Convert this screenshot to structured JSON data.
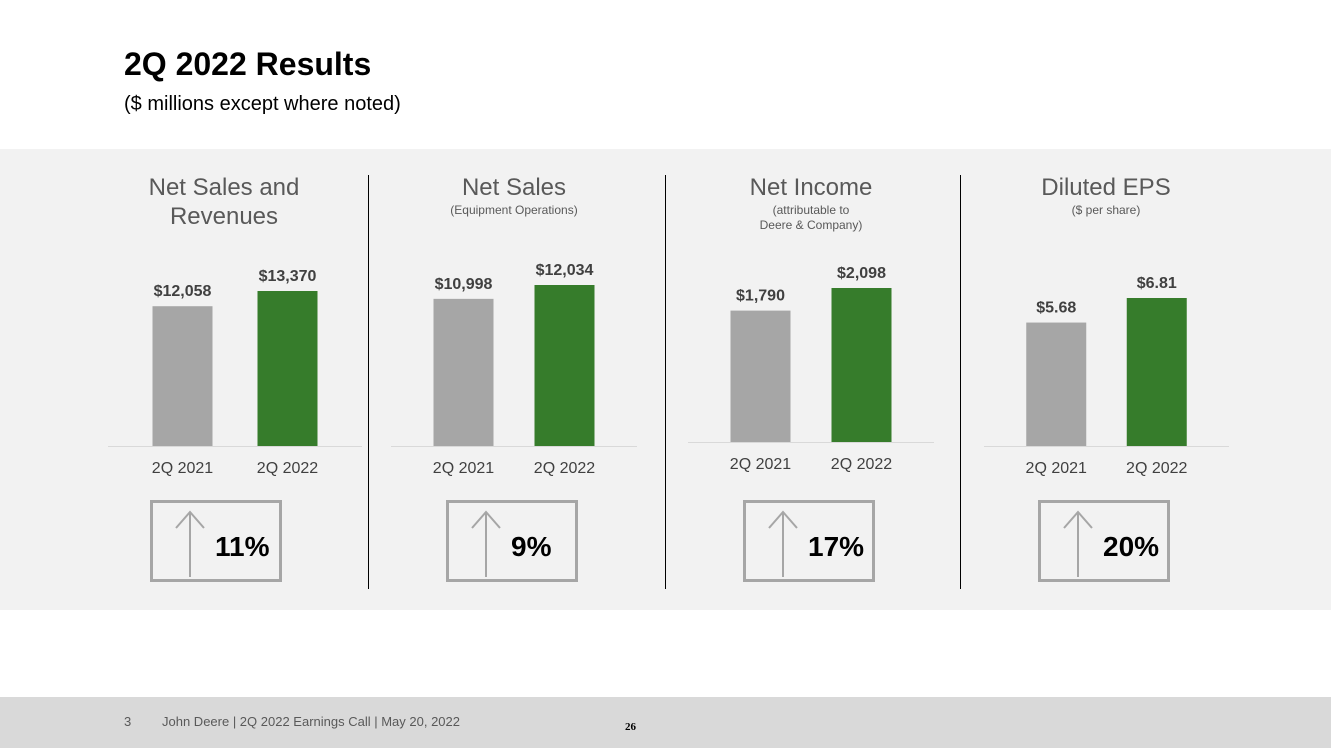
{
  "slide": {
    "title": "2Q 2022 Results",
    "subtitle": "($ millions except where noted)"
  },
  "colors": {
    "prior": "#a6a6a6",
    "current": "#367c2b",
    "band": "#f2f2f2",
    "footer": "#d9d9d9"
  },
  "panels": [
    {
      "title_lines": [
        "Net Sales and",
        "Revenues"
      ],
      "subtitle_lines": [],
      "change": "11%"
    },
    {
      "title_lines": [
        "Net Sales"
      ],
      "subtitle_lines": [
        "(Equipment Operations)"
      ],
      "change": "9%"
    },
    {
      "title_lines": [
        "Net Income"
      ],
      "subtitle_lines": [
        "(attributable to",
        "Deere & Company)"
      ],
      "change": "17%"
    },
    {
      "title_lines": [
        "Diluted EPS"
      ],
      "subtitle_lines": [
        "($ per share)"
      ],
      "change": "20%"
    }
  ],
  "chart_data": [
    {
      "type": "bar",
      "title": "Net Sales and Revenues",
      "categories": [
        "2Q 2021",
        "2Q 2022"
      ],
      "values": [
        12058,
        13370
      ],
      "labels": [
        "$12,058",
        "$13,370"
      ],
      "ylim": [
        0,
        13370
      ]
    },
    {
      "type": "bar",
      "title": "Net Sales (Equipment Operations)",
      "categories": [
        "2Q 2021",
        "2Q 2022"
      ],
      "values": [
        10998,
        12034
      ],
      "labels": [
        "$10,998",
        "$12,034"
      ],
      "ylim": [
        0,
        12034
      ]
    },
    {
      "type": "bar",
      "title": "Net Income (attributable to Deere & Company)",
      "categories": [
        "2Q 2021",
        "2Q 2022"
      ],
      "values": [
        1790,
        2098
      ],
      "labels": [
        "$1,790",
        "$2,098"
      ],
      "ylim": [
        0,
        2098
      ]
    },
    {
      "type": "bar",
      "title": "Diluted EPS ($ per share)",
      "categories": [
        "2Q 2021",
        "2Q 2022"
      ],
      "values": [
        5.68,
        6.81
      ],
      "labels": [
        "$5.68",
        "$6.81"
      ],
      "ylim": [
        0,
        6.81
      ]
    }
  ],
  "footer": {
    "slide_number": "3",
    "text": "John Deere | 2Q 2022 Earnings Call | May 20, 2022",
    "page": "26"
  }
}
